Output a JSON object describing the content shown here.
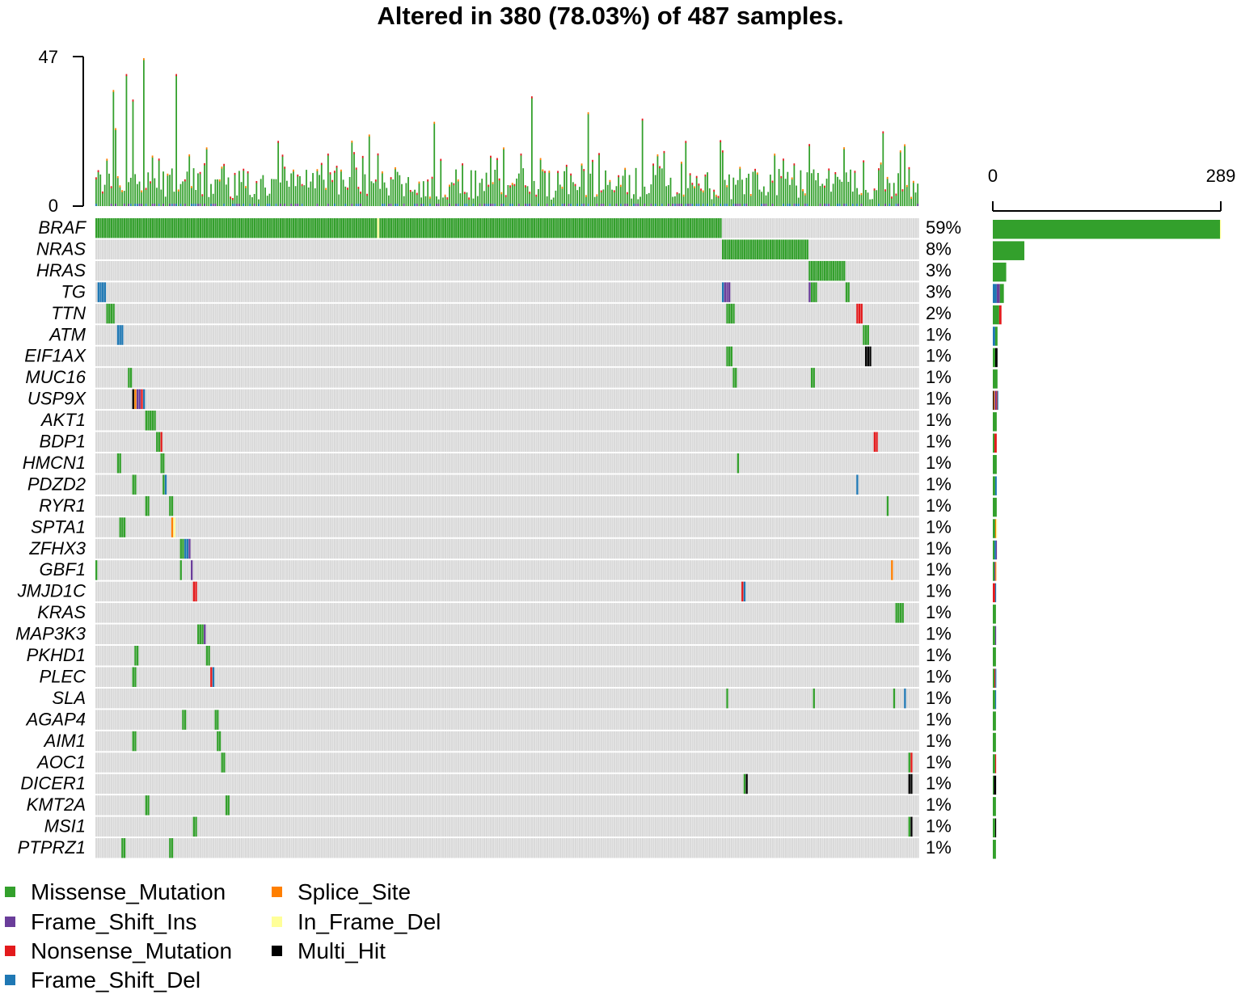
{
  "chart_data": {
    "type": "oncoplot",
    "title": "Altered in 380 (78.03%) of 487 samples.",
    "tmb_axis": {
      "min_label": "0",
      "max_label": "47",
      "max": 47
    },
    "count_axis": {
      "min_label": "0",
      "max_label": "289",
      "max": 289
    },
    "n_samples": 487,
    "colors": {
      "Missense_Mutation": "#33a02c",
      "Frame_Shift_Ins": "#6a3d9a",
      "Nonsense_Mutation": "#e31a1c",
      "Frame_Shift_Del": "#1f78b4",
      "Splice_Site": "#ff7f00",
      "In_Frame_Del": "#ffff99",
      "Multi_Hit": "#000000",
      "no_alteration": "#d9d9d9"
    },
    "legend": [
      "Missense_Mutation",
      "Frame_Shift_Ins",
      "Nonsense_Mutation",
      "Frame_Shift_Del",
      "Splice_Site",
      "In_Frame_Del",
      "Multi_Hit"
    ],
    "genes": [
      {
        "name": "BRAF",
        "pct": "59%",
        "count": 289,
        "types": {
          "Missense_Mutation": 288,
          "In_Frame_Del": 1
        }
      },
      {
        "name": "NRAS",
        "pct": "8%",
        "count": 40,
        "types": {
          "Missense_Mutation": 40
        }
      },
      {
        "name": "HRAS",
        "pct": "3%",
        "count": 17,
        "types": {
          "Missense_Mutation": 17
        }
      },
      {
        "name": "TG",
        "pct": "3%",
        "count": 14,
        "types": {
          "Frame_Shift_Del": 5,
          "Frame_Shift_Ins": 4,
          "Missense_Mutation": 5
        }
      },
      {
        "name": "TTN",
        "pct": "2%",
        "count": 11,
        "types": {
          "Missense_Mutation": 8,
          "Nonsense_Mutation": 3
        }
      },
      {
        "name": "ATM",
        "pct": "1%",
        "count": 6,
        "types": {
          "Frame_Shift_Del": 3,
          "Missense_Mutation": 3
        }
      },
      {
        "name": "EIF1AX",
        "pct": "1%",
        "count": 6,
        "types": {
          "Missense_Mutation": 3,
          "Multi_Hit": 3
        }
      },
      {
        "name": "MUC16",
        "pct": "1%",
        "count": 6,
        "types": {
          "Missense_Mutation": 6
        }
      },
      {
        "name": "USP9X",
        "pct": "1%",
        "count": 6,
        "types": {
          "Multi_Hit": 1,
          "Splice_Site": 1,
          "Frame_Shift_Ins": 2,
          "Nonsense_Mutation": 1,
          "Frame_Shift_Del": 1
        }
      },
      {
        "name": "AKT1",
        "pct": "1%",
        "count": 5,
        "types": {
          "Missense_Mutation": 5
        }
      },
      {
        "name": "BDP1",
        "pct": "1%",
        "count": 5,
        "types": {
          "Missense_Mutation": 2,
          "Nonsense_Mutation": 3
        }
      },
      {
        "name": "HMCN1",
        "pct": "1%",
        "count": 5,
        "types": {
          "Missense_Mutation": 5
        }
      },
      {
        "name": "PDZD2",
        "pct": "1%",
        "count": 5,
        "types": {
          "Missense_Mutation": 3,
          "Frame_Shift_Del": 2
        }
      },
      {
        "name": "RYR1",
        "pct": "1%",
        "count": 5,
        "types": {
          "Missense_Mutation": 5
        }
      },
      {
        "name": "SPTA1",
        "pct": "1%",
        "count": 5,
        "types": {
          "Missense_Mutation": 3,
          "Splice_Site": 1,
          "In_Frame_Del": 1
        }
      },
      {
        "name": "ZFHX3",
        "pct": "1%",
        "count": 5,
        "types": {
          "Missense_Mutation": 2,
          "Frame_Shift_Del": 2,
          "Frame_Shift_Ins": 1
        }
      },
      {
        "name": "GBF1",
        "pct": "1%",
        "count": 4,
        "types": {
          "Missense_Mutation": 2,
          "Frame_Shift_Ins": 1,
          "Splice_Site": 1
        }
      },
      {
        "name": "JMJD1C",
        "pct": "1%",
        "count": 4,
        "types": {
          "Nonsense_Mutation": 3,
          "Frame_Shift_Del": 1
        }
      },
      {
        "name": "KRAS",
        "pct": "1%",
        "count": 4,
        "types": {
          "Missense_Mutation": 4
        }
      },
      {
        "name": "MAP3K3",
        "pct": "1%",
        "count": 4,
        "types": {
          "Missense_Mutation": 3,
          "Frame_Shift_Ins": 1
        }
      },
      {
        "name": "PKHD1",
        "pct": "1%",
        "count": 4,
        "types": {
          "Missense_Mutation": 4
        }
      },
      {
        "name": "PLEC",
        "pct": "1%",
        "count": 4,
        "types": {
          "Missense_Mutation": 2,
          "Nonsense_Mutation": 1,
          "Frame_Shift_Del": 1
        }
      },
      {
        "name": "SLA",
        "pct": "1%",
        "count": 4,
        "types": {
          "Missense_Mutation": 3,
          "Frame_Shift_Del": 1
        }
      },
      {
        "name": "AGAP4",
        "pct": "1%",
        "count": 4,
        "types": {
          "Missense_Mutation": 4
        }
      },
      {
        "name": "AIM1",
        "pct": "1%",
        "count": 4,
        "types": {
          "Missense_Mutation": 4
        }
      },
      {
        "name": "AOC1",
        "pct": "1%",
        "count": 4,
        "types": {
          "Missense_Mutation": 3,
          "Nonsense_Mutation": 1
        }
      },
      {
        "name": "DICER1",
        "pct": "1%",
        "count": 4,
        "types": {
          "Missense_Mutation": 1,
          "Multi_Hit": 3
        }
      },
      {
        "name": "KMT2A",
        "pct": "1%",
        "count": 4,
        "types": {
          "Missense_Mutation": 4
        }
      },
      {
        "name": "MSI1",
        "pct": "1%",
        "count": 4,
        "types": {
          "Missense_Mutation": 3,
          "Multi_Hit": 1
        }
      },
      {
        "name": "PTPRZ1",
        "pct": "1%",
        "count": 4,
        "types": {
          "Missense_Mutation": 4
        }
      }
    ],
    "grid": "sample columns separated by white lines"
  }
}
